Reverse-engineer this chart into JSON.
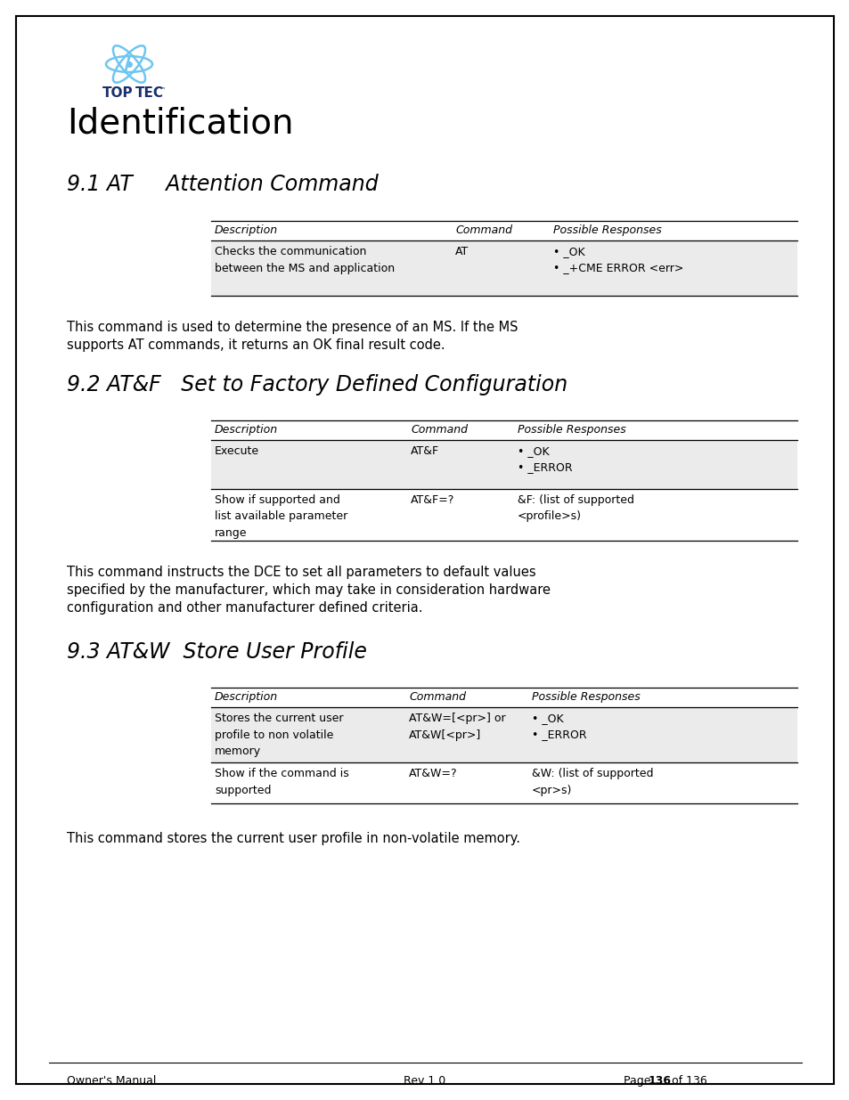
{
  "page_title": "Identification",
  "section1_title": "9.1 AT     Attention Command",
  "section2_title": "9.2 AT&F   Set to Factory Defined Configuration",
  "section3_title": "9.3 AT&W  Store User Profile",
  "table1_headers": [
    "Description",
    "Command",
    "Possible Responses"
  ],
  "table1_row1_col1": "Checks the communication\nbetween the MS and application",
  "table1_row1_col2": "AT",
  "table1_row1_col3": "• _OK\n• _+CME ERROR <err>",
  "table2_headers": [
    "Description",
    "Command",
    "Possible Responses"
  ],
  "table2_row1_col1": "Execute",
  "table2_row1_col2": "AT&F",
  "table2_row1_col3": "• _OK\n• _ERROR",
  "table2_row2_col1": "Show if supported and\nlist available parameter\nrange",
  "table2_row2_col2": "AT&F=?",
  "table2_row2_col3": "&F: (list of supported\n<profile>s)",
  "table3_headers": [
    "Description",
    "Command",
    "Possible Responses"
  ],
  "table3_row1_col1": "Stores the current user\nprofile to non volatile\nmemory",
  "table3_row1_col2": "AT&W=[<pr>] or\nAT&W[<pr>]",
  "table3_row1_col3": "• _OK\n• _ERROR",
  "table3_row2_col1": "Show if the command is\nsupported",
  "table3_row2_col2": "AT&W=?",
  "table3_row2_col3": "&W: (list of supported\n<pr>s)",
  "para1_line1": "This command is used to determine the presence of an MS. If the MS",
  "para1_line2": "supports AT commands, it returns an OK final result code.",
  "para2_line1": "This command instructs the DCE to set all parameters to default values",
  "para2_line2": "specified by the manufacturer, which may take in consideration hardware",
  "para2_line3": "configuration and other manufacturer defined criteria.",
  "para3": "This command stores the current user profile in non-volatile memory.",
  "footer_left": "Owner's Manual",
  "footer_center": "Rev 1.0",
  "footer_page_pre": "Page ",
  "footer_page_bold": "136",
  "footer_page_post": " of 136",
  "bg_color": "#ffffff",
  "border_color": "#000000",
  "shaded_row_color": "#ebebeb",
  "logo_orbit_color": "#6ec6f0",
  "logo_text_color": "#1a2f6b"
}
